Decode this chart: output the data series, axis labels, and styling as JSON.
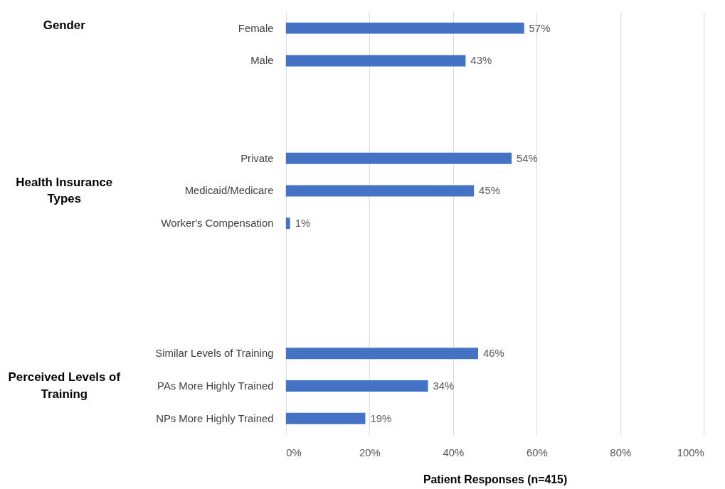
{
  "chart_data": {
    "type": "bar",
    "orientation": "horizontal",
    "categories": [
      "Female",
      "Male",
      null,
      null,
      "Private",
      "Medicaid/Medicare",
      "Worker's Compensation",
      null,
      null,
      null,
      "Similar Levels of Training",
      "PAs More Highly Trained",
      "NPs More Highly Trained"
    ],
    "values": [
      57,
      43,
      null,
      null,
      54,
      45,
      1,
      null,
      null,
      null,
      46,
      34,
      19
    ],
    "value_labels": [
      "57%",
      "43%",
      null,
      null,
      "54%",
      "45%",
      "1%",
      null,
      null,
      null,
      "46%",
      "34%",
      "19%"
    ],
    "color": "#4472c4",
    "xlim": [
      0,
      100
    ],
    "xticks": [
      {
        "value": 0,
        "label": "0%"
      },
      {
        "value": 20,
        "label": "20%"
      },
      {
        "value": 40,
        "label": "40%"
      },
      {
        "value": 60,
        "label": "60%"
      },
      {
        "value": 80,
        "label": "80%"
      },
      {
        "value": 100,
        "label": "100%"
      }
    ],
    "xlabel": "Patient Responses (n=415)",
    "annotations": [
      "Gender",
      "Health Insurance Types",
      "Perceived Levels of Training"
    ],
    "grid": "x"
  }
}
